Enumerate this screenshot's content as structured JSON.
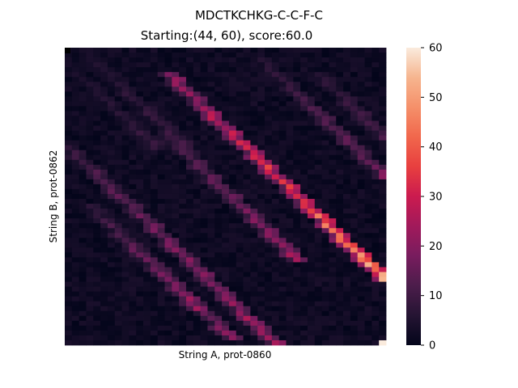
{
  "figure": {
    "suptitle": "MDCTKCHKG-C-C-F-C"
  },
  "chart_data": {
    "type": "heatmap",
    "title": "Starting:(44, 60), score:60.0",
    "xlabel": "String A, prot-0860",
    "ylabel": "String B, prot-0862",
    "colorbar": {
      "colormap": "rocket",
      "range": [
        0,
        60
      ],
      "ticks": [
        "0",
        "10",
        "20",
        "30",
        "40",
        "50",
        "60"
      ]
    },
    "grid": false,
    "start_cell": [
      44,
      60
    ],
    "score": 60.0,
    "rows": 61,
    "cols": 45,
    "diagonal_bands": [
      {
        "start_row": 5,
        "start_col": 14,
        "length": 56,
        "peak": 60.0
      },
      {
        "start_row": 2,
        "start_col": 27,
        "length": 30,
        "peak": 22
      },
      {
        "start_row": 5,
        "start_col": 35,
        "length": 24,
        "peak": 18
      },
      {
        "start_row": 18,
        "start_col": 14,
        "length": 26,
        "peak": 26
      },
      {
        "start_row": 20,
        "start_col": 0,
        "length": 44,
        "peak": 28
      },
      {
        "start_row": 32,
        "start_col": 3,
        "length": 22,
        "peak": 24
      },
      {
        "start_row": 40,
        "start_col": 9,
        "length": 20,
        "peak": 22
      },
      {
        "start_row": 0,
        "start_col": 2,
        "length": 22,
        "peak": 12
      },
      {
        "start_row": 3,
        "start_col": 0,
        "length": 18,
        "peak": 10
      }
    ]
  }
}
